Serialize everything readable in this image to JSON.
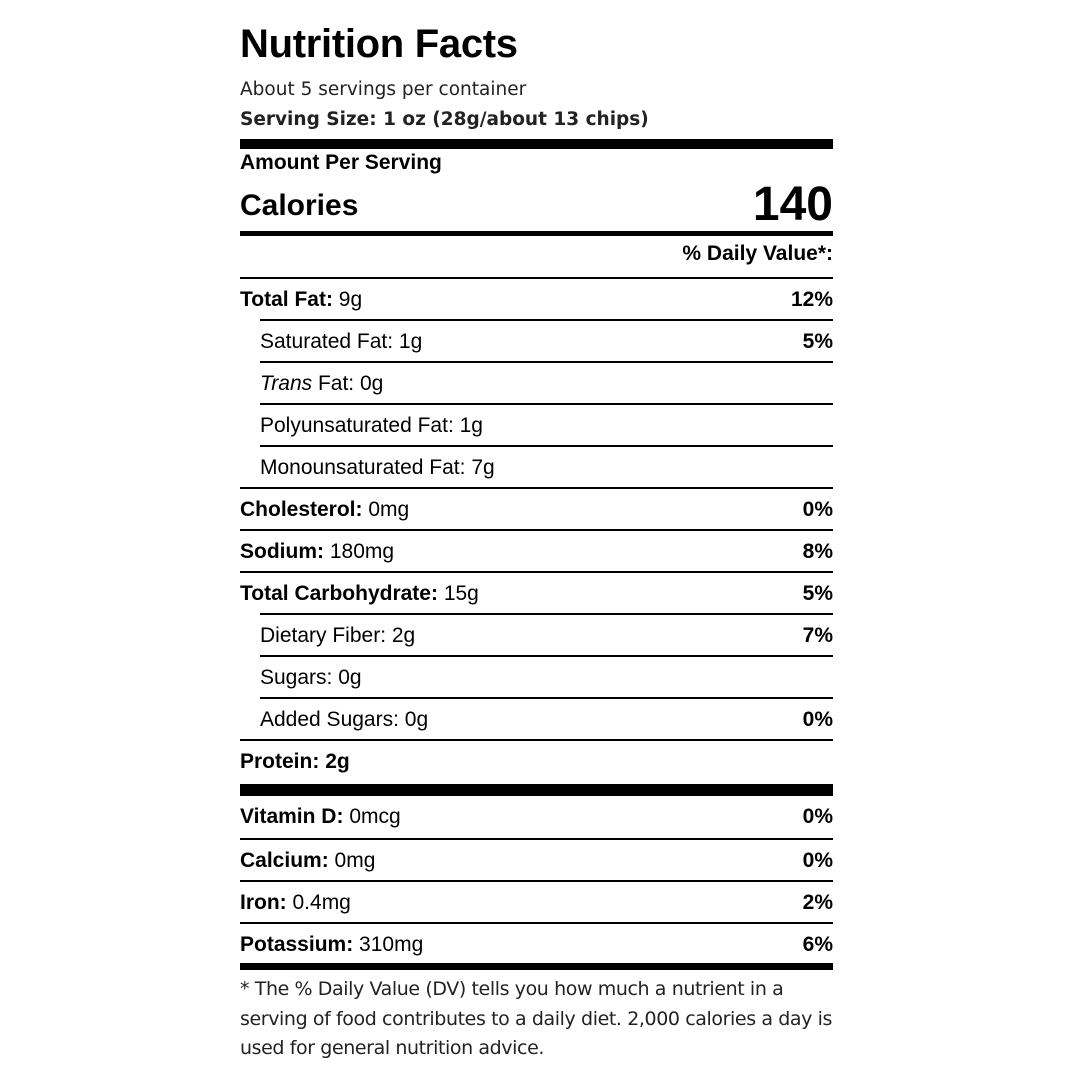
{
  "header": {
    "title": "Nutrition Facts",
    "servings_per_container": "About 5 servings per container",
    "serving_size": "Serving Size: 1 oz (28g/about 13 chips)"
  },
  "calories": {
    "amount_label": "Amount Per Serving",
    "label": "Calories",
    "value": "140"
  },
  "daily_value_header": "% Daily Value*:",
  "nutrients": [
    {
      "name": "Total Fat:",
      "amount": "9g",
      "dv": "12%",
      "bold": true
    },
    {
      "name": "Saturated Fat:",
      "amount": "1g",
      "dv": "5%"
    },
    {
      "name_italic": "Trans",
      "name": "Fat:",
      "amount": "0g",
      "dv": ""
    },
    {
      "name": "Polyunsaturated Fat:",
      "amount": "1g",
      "dv": ""
    },
    {
      "name": "Monounsaturated Fat:",
      "amount": "7g",
      "dv": ""
    },
    {
      "name": "Cholesterol:",
      "amount": "0mg",
      "dv": "0%",
      "bold": true
    },
    {
      "name": "Sodium:",
      "amount": "180mg",
      "dv": "8%",
      "bold": true
    },
    {
      "name": "Total Carbohydrate:",
      "amount": "15g",
      "dv": "5%",
      "bold": true
    },
    {
      "name": "Dietary Fiber:",
      "amount": "2g",
      "dv": "7%"
    },
    {
      "name": "Sugars:",
      "amount": "0g",
      "dv": ""
    },
    {
      "name": "Added Sugars:",
      "amount": "0g",
      "dv": "0%"
    },
    {
      "name": "Protein:",
      "amount": "2g",
      "dv": "",
      "bold": true
    }
  ],
  "vitamins": [
    {
      "name": "Vitamin D:",
      "amount": "0mcg",
      "dv": "0%"
    },
    {
      "name": "Calcium:",
      "amount": "0mg",
      "dv": "0%"
    },
    {
      "name": "Iron:",
      "amount": "0.4mg",
      "dv": "2%"
    },
    {
      "name": "Potassium:",
      "amount": "310mg",
      "dv": "6%"
    }
  ],
  "footnote": "* The % Daily Value (DV) tells you how much a nutrient in a serving of food contributes to a daily diet. 2,000 calories a day is used for general nutrition advice."
}
